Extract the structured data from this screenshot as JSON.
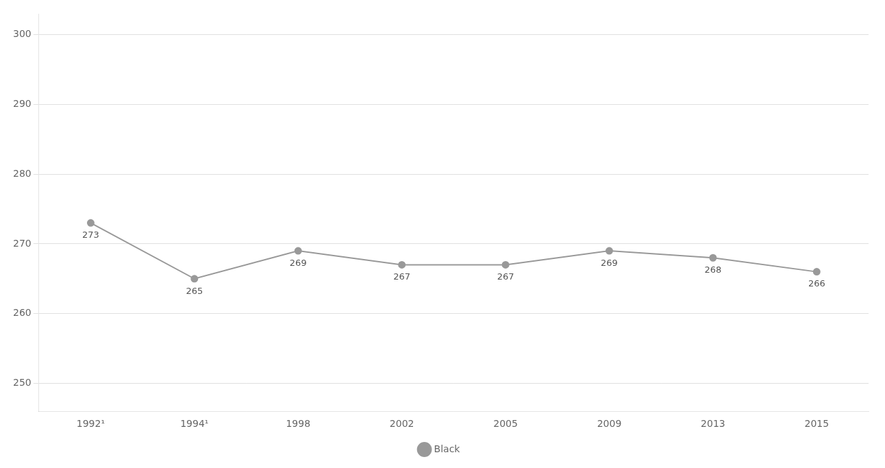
{
  "chart_data": {
    "type": "line",
    "categories": [
      "1992¹",
      "1994¹",
      "1998",
      "2002",
      "2005",
      "2009",
      "2013",
      "2015"
    ],
    "series": [
      {
        "name": "Black",
        "color": "#999999",
        "values": [
          273,
          265,
          269,
          267,
          267,
          269,
          268,
          266
        ]
      }
    ],
    "ylim": [
      246,
      303
    ],
    "yticks": [
      250,
      260,
      270,
      280,
      290,
      300
    ],
    "grid": "y",
    "legend": "bottom",
    "data_labels": true,
    "marker": "circle",
    "line_style": "solid"
  }
}
